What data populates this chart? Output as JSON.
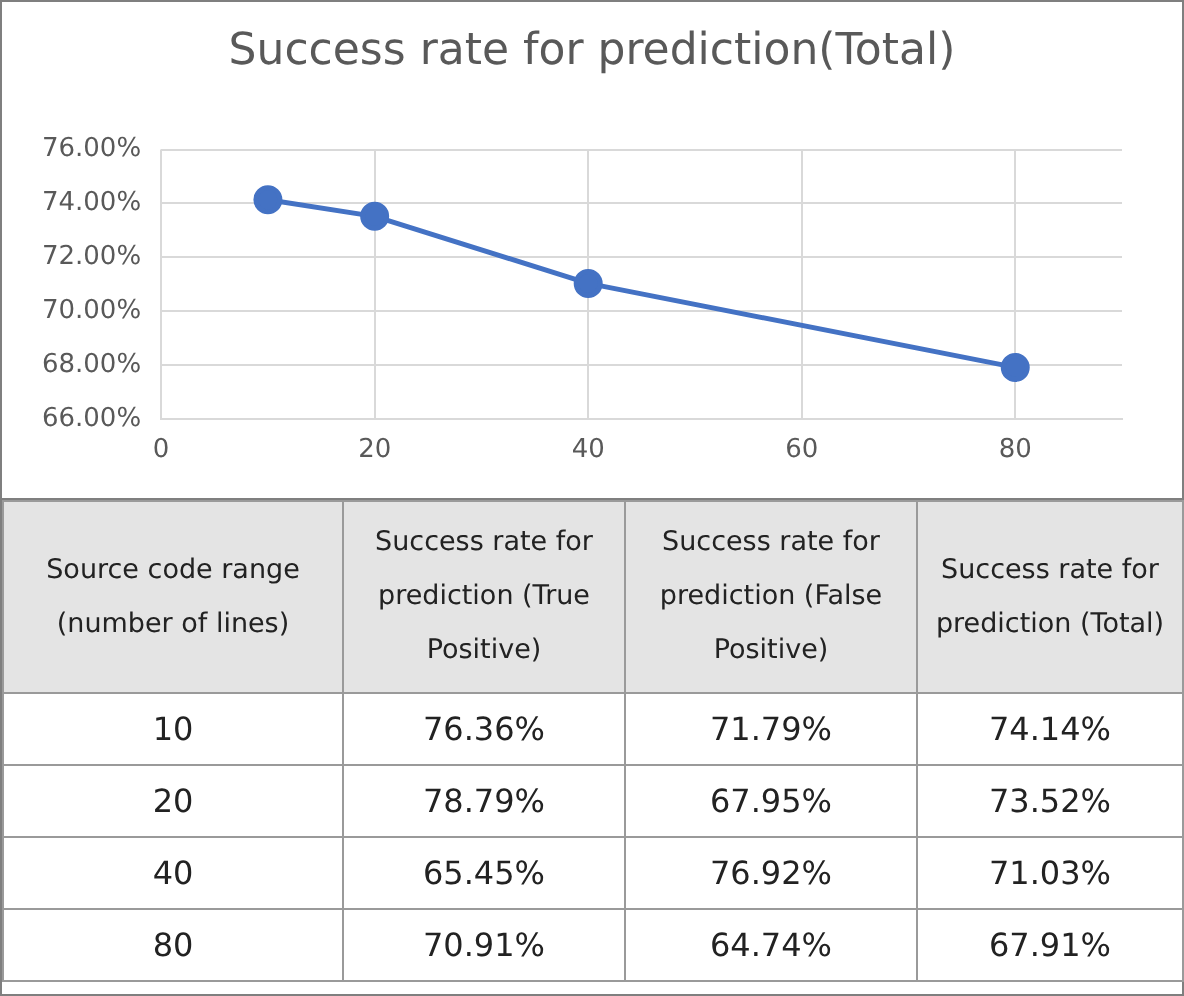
{
  "chart_data": [
    {
      "type": "line",
      "title": "Success rate for prediction(Total)",
      "x": [
        10,
        20,
        40,
        80
      ],
      "series": [
        {
          "color": "#4472c4",
          "values": [
            74.14,
            73.52,
            71.03,
            67.91
          ]
        }
      ],
      "xlim": [
        0,
        90
      ],
      "xticks": [
        0,
        20,
        40,
        60,
        80
      ],
      "ylim": [
        66,
        76
      ],
      "yticks": [
        {
          "value": 66,
          "label": "66.00%"
        },
        {
          "value": 68,
          "label": "68.00%"
        },
        {
          "value": 70,
          "label": "70.00%"
        },
        {
          "value": 72,
          "label": "72.00%"
        },
        {
          "value": 74,
          "label": "74.00%"
        },
        {
          "value": 76,
          "label": "76.00%"
        }
      ],
      "grid": true,
      "marker": "circle",
      "line_style": "solid"
    },
    {
      "type": "heatmap",
      "ylabel": "Source code range (number of lines)",
      "categories": [
        "Success rate for prediction (True Positive)",
        "Success rate for prediction (False Positive)",
        "Success rate for prediction (Total)"
      ],
      "y_categories": [
        "10",
        "20",
        "40",
        "80"
      ],
      "cells": [
        [
          76.36,
          71.79,
          74.14
        ],
        [
          78.79,
          67.95,
          73.52
        ],
        [
          65.45,
          76.92,
          71.03
        ],
        [
          70.91,
          64.74,
          67.91
        ]
      ],
      "cell_labels": [
        [
          "76.36%",
          "71.79%",
          "74.14%"
        ],
        [
          "78.79%",
          "67.95%",
          "73.52%"
        ],
        [
          "65.45%",
          "76.92%",
          "71.03%"
        ],
        [
          "70.91%",
          "64.74%",
          "67.91%"
        ]
      ]
    }
  ]
}
